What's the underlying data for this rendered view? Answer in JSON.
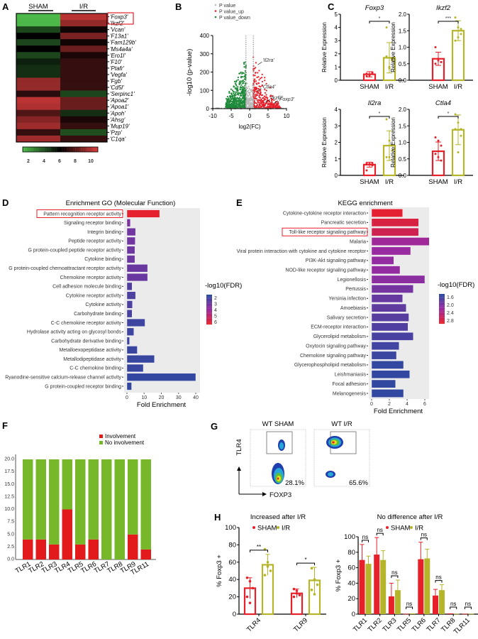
{
  "panel_labels": {
    "A": "A",
    "B": "B",
    "C": "C",
    "D": "D",
    "E": "E",
    "F": "F",
    "G": "G",
    "H": "H"
  },
  "colors": {
    "sham": "#e8202a",
    "ir": "#b5b52a",
    "heat_low": "#4cb84a",
    "heat_mid": "#000000",
    "heat_high": "#d43a3a",
    "fdr_low": "#2b4aa0",
    "fdr_high": "#e8202a",
    "up": "#e8202a",
    "down": "#1e8a3a",
    "ns": "#bbbbbb",
    "involvement": "#e31a1c",
    "no_involvement": "#77b82a",
    "highlight_box": "#e8202a"
  },
  "chart_data": [
    {
      "id": "A",
      "type": "heatmap",
      "columns": [
        "SHAM",
        "I/R"
      ],
      "rows": [
        "'Foxp3'",
        "'Ikzf2'",
        "'Vcan'",
        "'F13a1'",
        "'Fam129b'",
        "'Ms4a4a'",
        "'Ero1l'",
        "'F10'",
        "'Ptafr'",
        "'Vegfa'",
        "'Fgb'",
        "'Cd5l'",
        "'Serpinc1'",
        "'Apoa2'",
        "'Apoa1'",
        "'Apoh'",
        "'Ahsg'",
        "'Mup19'",
        "'Pzp'",
        "'C1qa'"
      ],
      "values": [
        [
          2,
          9.5
        ],
        [
          2,
          8.8
        ],
        [
          4.5,
          6.3
        ],
        [
          6,
          8.3
        ],
        [
          4.5,
          6.3
        ],
        [
          6,
          8
        ],
        [
          4.5,
          6.5
        ],
        [
          5.3,
          7
        ],
        [
          5,
          7
        ],
        [
          5,
          7
        ],
        [
          8.8,
          7
        ],
        [
          8.8,
          7
        ],
        [
          6.8,
          4.5
        ],
        [
          9.5,
          8
        ],
        [
          9.3,
          8
        ],
        [
          7.5,
          5
        ],
        [
          8.5,
          6.5
        ],
        [
          9,
          7
        ],
        [
          7,
          4.3
        ],
        [
          9,
          7
        ]
      ],
      "highlighted_rows": [
        "'Foxp3'",
        "'Ikzf2'"
      ],
      "colorbar_ticks": [
        "2",
        "4",
        "6",
        "8",
        "10"
      ],
      "range": [
        2,
        10
      ]
    },
    {
      "id": "B",
      "type": "scatter",
      "legend": [
        "P value",
        "P value_up",
        "P value_down"
      ],
      "xlabel": "log2(FC)",
      "ylabel": "-log10 (p-value)",
      "xlim": [
        -10,
        10
      ],
      "ylim": [
        0,
        400
      ],
      "xticks": [
        "-10",
        "-5",
        "0",
        "5",
        "10"
      ],
      "yticks": [
        "0",
        "100",
        "200",
        "300",
        "400"
      ],
      "thresholds_x": [
        -1,
        1
      ],
      "annotations": [
        {
          "label": "'Il2ra'",
          "x": 2.2,
          "y": 240
        },
        {
          "label": "'Ctla4'",
          "x": 2.0,
          "y": 95
        },
        {
          "label": "'Ikzf2'",
          "x": 4.3,
          "y": 35
        },
        {
          "label": "'Foxp3'",
          "x": 6.5,
          "y": 28
        }
      ]
    },
    {
      "id": "C",
      "type": "bar",
      "ylabel": "Relative Expression",
      "categories": [
        "SHAM",
        "I/R"
      ],
      "panels": [
        {
          "title": "Foxp3",
          "ylim": [
            0,
            5
          ],
          "yticks": [
            "0",
            "1",
            "2",
            "3",
            "4",
            "5"
          ],
          "means": [
            0.45,
            1.7
          ],
          "sd": [
            0.2,
            1.15
          ],
          "sig": "*",
          "points": [
            [
              0.3,
              0.45,
              0.6,
              0.5,
              0.35,
              0.55
            ],
            [
              4.0,
              1.0,
              1.6,
              1.8,
              0.9,
              1.5
            ]
          ]
        },
        {
          "title": "Ikzf2",
          "ylim": [
            0,
            2
          ],
          "yticks": [
            "0.0",
            "0.5",
            "1.0",
            "1.5",
            "2.0"
          ],
          "means": [
            0.65,
            1.5
          ],
          "sd": [
            0.2,
            0.3
          ],
          "sig": "***",
          "points": [
            [
              1.0,
              0.65,
              0.55,
              0.5,
              0.6,
              0.55
            ],
            [
              1.9,
              1.6,
              1.4,
              1.2,
              1.3,
              1.55
            ]
          ]
        },
        {
          "title": "Il2ra",
          "ylim": [
            0,
            4
          ],
          "yticks": [
            "0",
            "1",
            "2",
            "3",
            "4"
          ],
          "means": [
            0.65,
            1.8
          ],
          "sd": [
            0.15,
            0.9
          ],
          "sig": "*",
          "points": [
            [
              0.75,
              0.7,
              0.6,
              0.3,
              0.7,
              0.75
            ],
            [
              3.4,
              2.1,
              1.5,
              1.1,
              1.1,
              1.8
            ]
          ]
        },
        {
          "title": "Ctla4",
          "ylim": [
            0,
            2
          ],
          "yticks": [
            "0.0",
            "0.5",
            "1.0",
            "1.5",
            "2.0"
          ],
          "means": [
            0.73,
            1.38
          ],
          "sd": [
            0.28,
            0.45
          ],
          "sig": "*",
          "points": [
            [
              1.15,
              1.05,
              0.9,
              0.65,
              0.55,
              0.45
            ],
            [
              1.85,
              1.6,
              1.4,
              1.4,
              0.7,
              1.2
            ]
          ]
        }
      ]
    },
    {
      "id": "D",
      "type": "bar",
      "orientation": "horizontal",
      "title": "Enrichment GO (Molecular Function)",
      "xlabel": "Fold Enrichment",
      "xlim": [
        0,
        42
      ],
      "xticks": [
        "0",
        "10",
        "20",
        "30",
        "40"
      ],
      "legend_title": "-log10(FDR)",
      "legend_ticks": [
        "2",
        "3",
        "4",
        "5",
        "6"
      ],
      "color_range": [
        1.6,
        6.3
      ],
      "categories": [
        "Pattern recognition receptor activity",
        "Signaling receptor binding",
        "Integrin binding",
        "Peptide receptor activity",
        "G protein-coupled peptide receptor activity",
        "Cytokine binding",
        "G protein-coupled chemoattractant receptor activity",
        "Chemokine receptor activity",
        "Cell adhesion molecule binding",
        "Cytokine receptor activity",
        "Cytokine activity",
        "Carbohydrate binding",
        "C-C chemokine receptor activity",
        "Hydrolase activity acting on glycosyl bonds",
        "Carbohydrate derivative binding",
        "Metalloexopeptidase activity",
        "Metallodipeptidase activity",
        "C-C chemokine binding",
        "Ryanodine-sensitive calcium-release channel activity",
        "G protein-coupled receptor binding"
      ],
      "values": [
        19,
        2,
        5,
        4.8,
        4.6,
        4.6,
        12,
        12,
        3,
        5,
        3.2,
        3,
        10.5,
        4,
        1.5,
        6,
        16,
        9.5,
        40,
        2.7
      ],
      "neg_log10_fdr": [
        6.2,
        3.3,
        3.1,
        3.1,
        3.0,
        3.0,
        2.9,
        2.9,
        2.4,
        2.3,
        2.3,
        2.2,
        2.0,
        2.0,
        2.0,
        1.9,
        1.9,
        1.9,
        1.8,
        1.8
      ],
      "highlighted": "Pattern recognition receptor activity"
    },
    {
      "id": "E",
      "type": "bar",
      "orientation": "horizontal",
      "title": "KEGG enrichment",
      "xlabel": "Fold Enrichment",
      "xlim": [
        0,
        6.8
      ],
      "xticks": [
        "0",
        "2",
        "4",
        "6"
      ],
      "legend_title": "-log10(FDR)",
      "legend_ticks": [
        "1.6",
        "2.0",
        "2.4",
        "2.8"
      ],
      "color_range": [
        1.45,
        2.95
      ],
      "categories": [
        "Cytokine-cytokine receptor interaction",
        "Pancreatic secretion",
        "Toll-like receptor signaling pathway",
        "Malaria",
        "Viral protein interaction with cytokine and cytokine receptor",
        "PI3K-Akt signaling pathway",
        "NOD-like receptor signaling pathway",
        "Legionellosis",
        "Pertussis",
        "Yersinia infection",
        "Amoebiasis",
        "Salivary secretion",
        "ECM-receptor interaction",
        "Glycerolipid metabolism",
        "Oxytocin signaling pathway",
        "Chemokine signaling pathway",
        "Glycerophospholipid metabolism",
        "Leishmaniasis",
        "Focal adhesion",
        "Melanogenesis"
      ],
      "values": [
        3.5,
        5.3,
        5.3,
        6.5,
        4.4,
        2.5,
        3.2,
        6,
        4.7,
        3.5,
        3.9,
        4.2,
        4.1,
        4.7,
        3.1,
        2.8,
        3.6,
        4.3,
        2.7,
        3.6
      ],
      "neg_log10_fdr": [
        2.9,
        2.8,
        2.7,
        2.25,
        2.2,
        2.15,
        2.15,
        2.1,
        1.95,
        1.85,
        1.8,
        1.75,
        1.7,
        1.65,
        1.6,
        1.55,
        1.5,
        1.5,
        1.5,
        1.5
      ],
      "highlighted": "Toll-like receptor signaling pathway"
    },
    {
      "id": "F",
      "type": "bar",
      "stacked": true,
      "categories": [
        "TLR1",
        "TLR2",
        "TLR3",
        "TLR4",
        "TLR5",
        "TLR6",
        "TLR7",
        "TLR8",
        "TLR9",
        "TLR11"
      ],
      "series": [
        {
          "name": "Involvement",
          "values": [
            4,
            4,
            3,
            10,
            3,
            4,
            0,
            0,
            5,
            2
          ]
        },
        {
          "name": "No involvement",
          "values": [
            16,
            16,
            17,
            10,
            17,
            16,
            20,
            20,
            15,
            18
          ]
        }
      ],
      "ylim": [
        0,
        20
      ],
      "yticks": [
        "0.0",
        "2.5",
        "5.0",
        "7.5",
        "10.0",
        "12.5",
        "15.0",
        "17.5",
        "20.0"
      ],
      "legend": "top-right"
    },
    {
      "id": "G",
      "type": "scatter",
      "subtype": "flow-cytometry",
      "xlabel": "FOXP3",
      "ylabel": "TLR4",
      "plots": [
        {
          "title": "WT SHAM",
          "gate_percent": "28.1%"
        },
        {
          "title": "WT I/R",
          "gate_percent": "65.6%"
        }
      ]
    },
    {
      "id": "H1",
      "type": "bar",
      "title": "Increased after I/R",
      "ylabel": "% Foxp3 +",
      "legend": [
        "SHAM",
        "I/R"
      ],
      "ylim": [
        0,
        100
      ],
      "yticks": [
        "0",
        "20",
        "40",
        "60",
        "80",
        "100"
      ],
      "categories": [
        "TLR4",
        "TLR9"
      ],
      "series": [
        {
          "name": "SHAM",
          "values": [
            30,
            24
          ],
          "sd": [
            12,
            5
          ]
        },
        {
          "name": "I/R",
          "values": [
            57,
            39
          ],
          "sd": [
            12,
            15
          ]
        }
      ],
      "sig": [
        "**",
        "*"
      ],
      "points": [
        [
          [
            42,
            38,
            30,
            20,
            13
          ],
          [
            29,
            27,
            22,
            20,
            24
          ]
        ],
        [
          [
            75,
            55,
            50,
            45,
            60
          ],
          [
            53,
            40,
            34,
            28,
            23
          ]
        ]
      ]
    },
    {
      "id": "H2",
      "type": "bar",
      "title": "No difference after I/R",
      "ylabel": "% Foxp3 +",
      "legend": [
        "SHAM",
        "I/R"
      ],
      "ylim": [
        0,
        100
      ],
      "yticks": [
        "0",
        "20",
        "40",
        "60",
        "80",
        "100"
      ],
      "categories": [
        "TLR1",
        "TLR2",
        "TLR3",
        "TLR5",
        "TLR6",
        "TLR7",
        "TLR8",
        "TLR11"
      ],
      "series": [
        {
          "name": "SHAM",
          "values": [
            70,
            77,
            23,
            0.5,
            71,
            24,
            1,
            0.5
          ],
          "sd": [
            20,
            22,
            17,
            0,
            22,
            8,
            0,
            0
          ]
        },
        {
          "name": "I/R",
          "values": [
            65,
            70,
            31,
            1,
            72,
            31,
            0.5,
            0.5
          ],
          "sd": [
            10,
            12,
            13,
            0,
            12,
            7,
            0,
            0
          ]
        }
      ],
      "sig": [
        "ns",
        "ns",
        "ns",
        "ns",
        "ns",
        "ns",
        "ns",
        "ns"
      ]
    }
  ]
}
